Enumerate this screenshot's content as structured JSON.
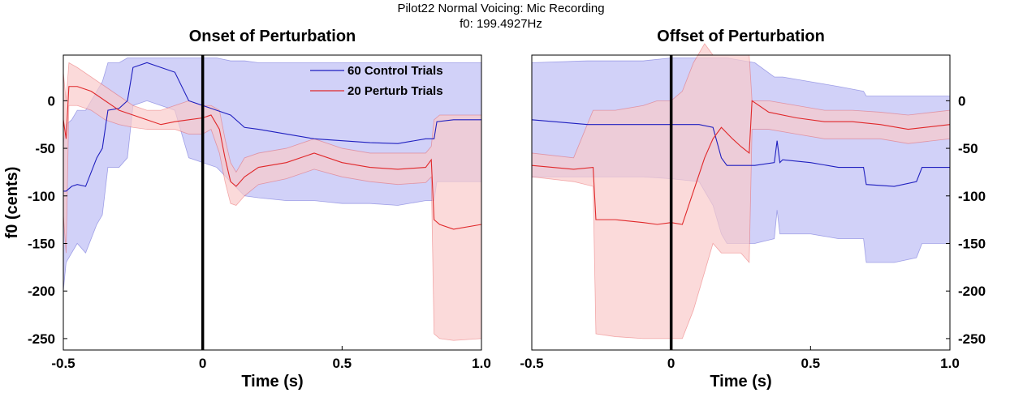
{
  "figure": {
    "title_line1": "Pilot22 Normal Voicing: Mic Recording",
    "title_line2": "f0: 199.4927Hz"
  },
  "colors": {
    "control_line": "#1f1fbf",
    "control_band": "#c9c9f7",
    "perturb_line": "#e0282a",
    "perturb_band": "#f9caca",
    "marker": "#000000"
  },
  "legend": {
    "control_label": "60 Control Trials",
    "perturb_label": "20 Perturb Trials",
    "placement": "top-right of left panel"
  },
  "chart_data": [
    {
      "type": "line",
      "title": "Onset of Perturbation",
      "xlabel": "Time (s)",
      "ylabel": "f0 (cents)",
      "xlim": [
        -0.5,
        1.0
      ],
      "ylim": [
        -262,
        48
      ],
      "xticks": [
        -0.5,
        0,
        0.5,
        1.0
      ],
      "xtick_labels": [
        "-0.5",
        "0",
        "0.5",
        "1.0"
      ],
      "yticks": [
        0,
        -50,
        -100,
        -150,
        -200,
        -250
      ],
      "ytick_labels": [
        "0",
        "-50",
        "-100",
        "-150",
        "-200",
        "-250"
      ],
      "y_axis_side": "left",
      "event_marker_x": 0,
      "series": [
        {
          "name": "60 Control Trials",
          "x": [
            -0.5,
            -0.49,
            -0.47,
            -0.45,
            -0.42,
            -0.38,
            -0.36,
            -0.34,
            -0.3,
            -0.27,
            -0.25,
            -0.2,
            -0.15,
            -0.1,
            -0.05,
            0.0,
            0.05,
            0.1,
            0.15,
            0.2,
            0.3,
            0.4,
            0.5,
            0.6,
            0.7,
            0.8,
            0.83,
            0.84,
            0.9,
            1.0
          ],
          "mean": [
            -95,
            -95,
            -90,
            -88,
            -90,
            -60,
            -50,
            -10,
            -8,
            0,
            35,
            40,
            35,
            30,
            0,
            -5,
            -10,
            -15,
            -28,
            -30,
            -35,
            -40,
            -42,
            -44,
            -45,
            -40,
            -40,
            -22,
            -20,
            -20
          ],
          "upper": [
            -45,
            -25,
            -20,
            -10,
            -10,
            10,
            20,
            40,
            40,
            45,
            45,
            45,
            45,
            45,
            45,
            45,
            45,
            42,
            42,
            40,
            40,
            40,
            40,
            40,
            40,
            40,
            40,
            40,
            40,
            40
          ],
          "lower": [
            -200,
            -170,
            -160,
            -150,
            -160,
            -130,
            -120,
            -70,
            -70,
            -60,
            -5,
            0,
            -5,
            -10,
            -60,
            -65,
            -70,
            -85,
            -100,
            -102,
            -105,
            -105,
            -108,
            -108,
            -110,
            -105,
            -105,
            -85,
            -85,
            -85
          ]
        },
        {
          "name": "20 Perturb Trials",
          "x": [
            -0.5,
            -0.49,
            -0.48,
            -0.45,
            -0.4,
            -0.35,
            -0.3,
            -0.25,
            -0.2,
            -0.15,
            -0.1,
            -0.05,
            0.0,
            0.03,
            0.06,
            0.08,
            0.1,
            0.12,
            0.15,
            0.2,
            0.3,
            0.4,
            0.5,
            0.6,
            0.7,
            0.8,
            0.82,
            0.83,
            0.85,
            0.9,
            1.0
          ],
          "mean": [
            -20,
            -40,
            15,
            15,
            10,
            0,
            -10,
            -15,
            -20,
            -25,
            -22,
            -20,
            -18,
            -15,
            -30,
            -60,
            -85,
            -90,
            -80,
            -70,
            -65,
            -55,
            -65,
            -70,
            -72,
            -70,
            -62,
            -125,
            -130,
            -135,
            -130
          ],
          "upper": [
            30,
            0,
            40,
            35,
            25,
            15,
            5,
            -5,
            -10,
            -10,
            -5,
            0,
            -5,
            -5,
            -10,
            -40,
            -65,
            -75,
            -60,
            -55,
            -50,
            -40,
            -50,
            -55,
            -55,
            -55,
            -48,
            -20,
            -15,
            -15,
            -15
          ],
          "lower": [
            -120,
            -160,
            -5,
            -5,
            -10,
            -20,
            -25,
            -28,
            -30,
            -30,
            -30,
            -35,
            -35,
            -30,
            -55,
            -85,
            -108,
            -110,
            -100,
            -88,
            -82,
            -72,
            -80,
            -85,
            -88,
            -86,
            -80,
            -245,
            -250,
            -252,
            -250
          ]
        }
      ]
    },
    {
      "type": "line",
      "title": "Offset of Perturbation",
      "xlabel": "Time (s)",
      "ylabel": "",
      "xlim": [
        -0.5,
        1.0
      ],
      "ylim": [
        -262,
        48
      ],
      "xticks": [
        -0.5,
        0,
        0.5,
        1.0
      ],
      "xtick_labels": [
        "-0.5",
        "0",
        "0.5",
        "1.0"
      ],
      "yticks": [
        0,
        -50,
        -100,
        -150,
        -200,
        -250
      ],
      "ytick_labels": [
        "0",
        "-50",
        "-100",
        "-150",
        "-200",
        "-250"
      ],
      "y_axis_side": "right",
      "event_marker_x": 0,
      "series": [
        {
          "name": "60 Control Trials",
          "x": [
            -0.5,
            -0.3,
            -0.1,
            0.0,
            0.1,
            0.15,
            0.18,
            0.2,
            0.3,
            0.37,
            0.38,
            0.39,
            0.4,
            0.5,
            0.6,
            0.69,
            0.7,
            0.8,
            0.88,
            0.9,
            1.0
          ],
          "mean": [
            -20,
            -25,
            -25,
            -25,
            -25,
            -28,
            -60,
            -68,
            -68,
            -65,
            -42,
            -65,
            -62,
            -65,
            -70,
            -70,
            -88,
            -90,
            -85,
            -70,
            -70
          ],
          "upper": [
            40,
            42,
            42,
            45,
            45,
            45,
            45,
            45,
            40,
            25,
            25,
            25,
            25,
            20,
            15,
            10,
            5,
            5,
            5,
            5,
            5
          ],
          "lower": [
            -80,
            -80,
            -80,
            -82,
            -85,
            -110,
            -140,
            -150,
            -150,
            -145,
            -115,
            -140,
            -140,
            -140,
            -145,
            -145,
            -170,
            -170,
            -165,
            -150,
            -150
          ]
        },
        {
          "name": "20 Perturb Trials",
          "x": [
            -0.5,
            -0.35,
            -0.28,
            -0.27,
            -0.2,
            -0.1,
            -0.05,
            0.0,
            0.04,
            0.08,
            0.12,
            0.15,
            0.18,
            0.22,
            0.25,
            0.28,
            0.29,
            0.35,
            0.45,
            0.55,
            0.65,
            0.75,
            0.85,
            1.0
          ],
          "mean": [
            -68,
            -72,
            -70,
            -125,
            -125,
            -128,
            -130,
            -128,
            -130,
            -95,
            -60,
            -40,
            -28,
            -40,
            -48,
            -55,
            0,
            -12,
            -18,
            -22,
            -22,
            -25,
            -30,
            -25
          ],
          "upper": [
            -55,
            -60,
            -10,
            -10,
            -10,
            -5,
            0,
            0,
            10,
            40,
            60,
            48,
            48,
            48,
            48,
            48,
            0,
            0,
            -5,
            -10,
            -10,
            -12,
            -15,
            -10
          ],
          "lower": [
            -80,
            -85,
            -90,
            -245,
            -248,
            -250,
            -250,
            -250,
            -250,
            -220,
            -180,
            -150,
            -160,
            -160,
            -160,
            -170,
            -30,
            -30,
            -35,
            -40,
            -40,
            -40,
            -45,
            -40
          ]
        }
      ]
    }
  ]
}
